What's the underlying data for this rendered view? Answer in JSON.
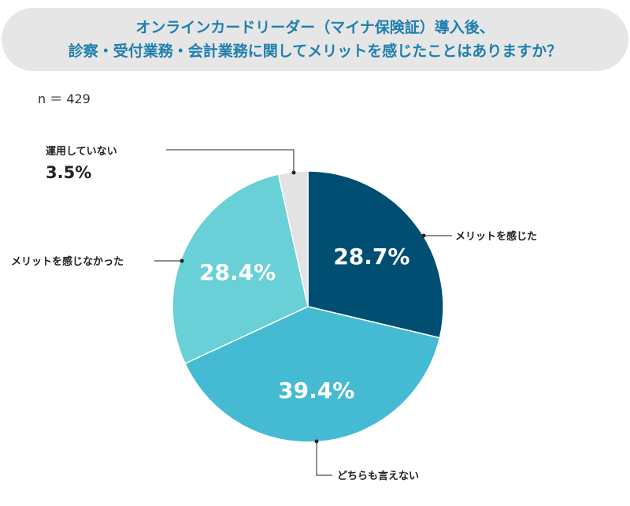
{
  "title": {
    "line1": "オンラインカードリーダー（マイナ保険証）導入後、",
    "line2": "診察・受付業務・会計業務に関してメリットを感じたことはありますか？"
  },
  "sample_size": "n ＝ 429",
  "chart_data": {
    "type": "pie",
    "title": "オンラインカードリーダー（マイナ保険証）導入後、診察・受付業務・会計業務に関してメリットを感じたことはありますか？",
    "start_angle_deg": 0,
    "direction": "clockwise",
    "slices": [
      {
        "label": "メリットを感じた",
        "value": 28.7,
        "value_label": "28.7%",
        "color": "#004f72"
      },
      {
        "label": "どちらも言えない",
        "value": 39.4,
        "value_label": "39.4%",
        "color": "#45bbd3"
      },
      {
        "label": "メリットを感じなかった",
        "value": 28.4,
        "value_label": "28.4%",
        "color": "#68d0d6"
      },
      {
        "label": "運用していない",
        "value": 3.5,
        "value_label": "3.5%",
        "color": "#e3e3e3"
      }
    ]
  }
}
